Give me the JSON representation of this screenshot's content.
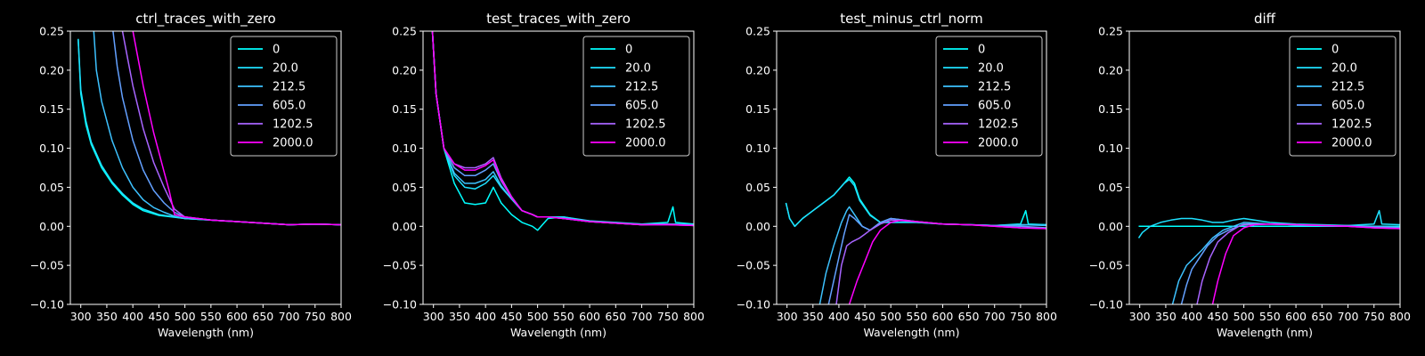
{
  "figure": {
    "background": "#000000",
    "foreground": "#ffffff"
  },
  "chart_data": [
    {
      "type": "line",
      "title": "ctrl_traces_with_zero",
      "xlabel": "Wavelength (nm)",
      "ylabel": "",
      "xlim": [
        280,
        800
      ],
      "ylim": [
        -0.1,
        0.25
      ],
      "xticks": [
        300,
        350,
        400,
        450,
        500,
        550,
        600,
        650,
        700,
        750,
        800
      ],
      "yticks": [
        -0.1,
        -0.05,
        0.0,
        0.05,
        0.1,
        0.15,
        0.2,
        0.25
      ],
      "grid": false,
      "legend_position": "top-right",
      "series": [
        {
          "name": "0",
          "color": "#00ffff",
          "x": [
            295,
            300,
            310,
            320,
            340,
            360,
            380,
            400,
            420,
            450,
            500,
            550,
            600,
            650,
            700,
            750,
            800
          ],
          "y": [
            0.24,
            0.17,
            0.13,
            0.105,
            0.075,
            0.055,
            0.04,
            0.028,
            0.02,
            0.014,
            0.01,
            0.008,
            0.006,
            0.004,
            0.002,
            0.003,
            0.002
          ]
        },
        {
          "name": "20.0",
          "color": "#1ee1ff",
          "x": [
            295,
            300,
            310,
            320,
            340,
            360,
            380,
            400,
            420,
            450,
            500,
            550,
            600,
            650,
            700,
            750,
            800
          ],
          "y": [
            0.24,
            0.175,
            0.135,
            0.108,
            0.078,
            0.057,
            0.042,
            0.03,
            0.022,
            0.015,
            0.01,
            0.008,
            0.006,
            0.004,
            0.002,
            0.003,
            0.002
          ]
        },
        {
          "name": "212.5",
          "color": "#3dc2ff",
          "x": [
            325,
            330,
            340,
            360,
            380,
            400,
            420,
            440,
            460,
            480,
            500,
            550,
            600,
            650,
            700,
            750,
            800
          ],
          "y": [
            0.25,
            0.2,
            0.16,
            0.11,
            0.075,
            0.05,
            0.034,
            0.024,
            0.018,
            0.013,
            0.01,
            0.008,
            0.006,
            0.004,
            0.002,
            0.003,
            0.002
          ]
        },
        {
          "name": "605.0",
          "color": "#63a0ff",
          "x": [
            362,
            370,
            380,
            400,
            420,
            440,
            460,
            480,
            500,
            550,
            600,
            650,
            700,
            750,
            800
          ],
          "y": [
            0.25,
            0.205,
            0.165,
            0.11,
            0.072,
            0.046,
            0.03,
            0.018,
            0.012,
            0.008,
            0.006,
            0.004,
            0.002,
            0.003,
            0.002
          ]
        },
        {
          "name": "1202.5",
          "color": "#a864ff",
          "x": [
            380,
            390,
            400,
            420,
            440,
            460,
            480,
            500,
            550,
            600,
            650,
            700,
            750,
            800
          ],
          "y": [
            0.25,
            0.215,
            0.18,
            0.125,
            0.082,
            0.05,
            0.022,
            0.012,
            0.008,
            0.006,
            0.004,
            0.002,
            0.003,
            0.002
          ]
        },
        {
          "name": "2000.0",
          "color": "#ff00ff",
          "x": [
            400,
            410,
            420,
            440,
            460,
            470,
            480,
            500,
            550,
            600,
            650,
            700,
            750,
            800
          ],
          "y": [
            0.25,
            0.215,
            0.18,
            0.12,
            0.07,
            0.045,
            0.015,
            0.012,
            0.008,
            0.006,
            0.004,
            0.002,
            0.003,
            0.002
          ]
        }
      ]
    },
    {
      "type": "line",
      "title": "test_traces_with_zero",
      "xlabel": "Wavelength (nm)",
      "ylabel": "",
      "xlim": [
        280,
        800
      ],
      "ylim": [
        -0.1,
        0.25
      ],
      "xticks": [
        300,
        350,
        400,
        450,
        500,
        550,
        600,
        650,
        700,
        750,
        800
      ],
      "yticks": [
        -0.1,
        -0.05,
        0.0,
        0.05,
        0.1,
        0.15,
        0.2,
        0.25
      ],
      "grid": false,
      "legend_position": "top-right",
      "series": [
        {
          "name": "0",
          "color": "#00ffff",
          "x": [
            298,
            305,
            320,
            340,
            360,
            380,
            400,
            415,
            430,
            450,
            470,
            490,
            500,
            520,
            550,
            600,
            650,
            700,
            750,
            760,
            765,
            800
          ],
          "y": [
            0.25,
            0.17,
            0.1,
            0.055,
            0.03,
            0.028,
            0.03,
            0.05,
            0.03,
            0.015,
            0.005,
            0.0,
            -0.005,
            0.01,
            0.012,
            0.006,
            0.004,
            0.003,
            0.005,
            0.025,
            0.005,
            0.003
          ]
        },
        {
          "name": "20.0",
          "color": "#1ee1ff",
          "x": [
            298,
            305,
            320,
            340,
            360,
            380,
            400,
            415,
            430,
            450,
            470,
            490,
            500,
            520,
            550,
            600,
            650,
            700,
            750,
            800
          ],
          "y": [
            0.25,
            0.17,
            0.1,
            0.065,
            0.05,
            0.048,
            0.055,
            0.065,
            0.05,
            0.035,
            0.02,
            0.015,
            0.012,
            0.012,
            0.012,
            0.007,
            0.005,
            0.003,
            0.003,
            0.002
          ]
        },
        {
          "name": "212.5",
          "color": "#3dc2ff",
          "x": [
            298,
            305,
            320,
            340,
            360,
            380,
            400,
            415,
            430,
            450,
            470,
            490,
            500,
            520,
            550,
            600,
            650,
            700,
            750,
            800
          ],
          "y": [
            0.25,
            0.17,
            0.1,
            0.068,
            0.055,
            0.055,
            0.06,
            0.07,
            0.052,
            0.035,
            0.02,
            0.015,
            0.012,
            0.012,
            0.01,
            0.006,
            0.004,
            0.002,
            0.003,
            0.002
          ]
        },
        {
          "name": "605.0",
          "color": "#63a0ff",
          "x": [
            298,
            305,
            320,
            340,
            360,
            380,
            400,
            415,
            430,
            450,
            470,
            490,
            500,
            520,
            550,
            600,
            650,
            700,
            750,
            800
          ],
          "y": [
            0.25,
            0.17,
            0.1,
            0.075,
            0.065,
            0.065,
            0.072,
            0.08,
            0.058,
            0.037,
            0.02,
            0.015,
            0.012,
            0.012,
            0.01,
            0.006,
            0.004,
            0.002,
            0.003,
            0.001
          ]
        },
        {
          "name": "1202.5",
          "color": "#a864ff",
          "x": [
            298,
            305,
            320,
            340,
            360,
            380,
            400,
            415,
            430,
            450,
            470,
            490,
            500,
            520,
            550,
            600,
            650,
            700,
            750,
            800
          ],
          "y": [
            0.25,
            0.17,
            0.1,
            0.08,
            0.075,
            0.075,
            0.08,
            0.088,
            0.062,
            0.038,
            0.02,
            0.015,
            0.012,
            0.012,
            0.01,
            0.006,
            0.004,
            0.002,
            0.002,
            0.001
          ]
        },
        {
          "name": "2000.0",
          "color": "#ff00ff",
          "x": [
            298,
            305,
            320,
            340,
            360,
            380,
            400,
            415,
            430,
            450,
            470,
            490,
            500,
            520,
            550,
            600,
            650,
            700,
            750,
            800
          ],
          "y": [
            0.25,
            0.17,
            0.1,
            0.08,
            0.072,
            0.072,
            0.078,
            0.085,
            0.06,
            0.037,
            0.02,
            0.015,
            0.012,
            0.012,
            0.01,
            0.006,
            0.004,
            0.002,
            0.002,
            0.001
          ]
        }
      ]
    },
    {
      "type": "line",
      "title": "test_minus_ctrl_norm",
      "xlabel": "Wavelength (nm)",
      "ylabel": "",
      "xlim": [
        280,
        800
      ],
      "ylim": [
        -0.1,
        0.25
      ],
      "xticks": [
        300,
        350,
        400,
        450,
        500,
        550,
        600,
        650,
        700,
        750,
        800
      ],
      "yticks": [
        -0.1,
        -0.05,
        0.0,
        0.05,
        0.1,
        0.15,
        0.2,
        0.25
      ],
      "grid": false,
      "legend_position": "top-right",
      "series": [
        {
          "name": "0",
          "color": "#00ffff",
          "x": [
            298,
            305,
            315,
            330,
            350,
            370,
            390,
            410,
            420,
            430,
            440,
            460,
            480,
            500,
            550,
            600,
            650,
            700,
            750,
            760,
            765,
            800
          ],
          "y": [
            0.03,
            0.01,
            0.0,
            0.01,
            0.02,
            0.03,
            0.04,
            0.055,
            0.063,
            0.055,
            0.035,
            0.015,
            0.005,
            0.005,
            0.005,
            0.003,
            0.002,
            0.001,
            0.003,
            0.02,
            0.003,
            0.002
          ]
        },
        {
          "name": "20.0",
          "color": "#1ee1ff",
          "x": [
            298,
            305,
            315,
            330,
            350,
            370,
            390,
            410,
            420,
            430,
            440,
            460,
            480,
            500,
            550,
            600,
            650,
            700,
            750,
            800
          ],
          "y": [
            0.03,
            0.01,
            0.0,
            0.01,
            0.02,
            0.03,
            0.04,
            0.055,
            0.06,
            0.052,
            0.033,
            0.014,
            0.005,
            0.005,
            0.005,
            0.003,
            0.002,
            0.001,
            0.002,
            0.002
          ]
        },
        {
          "name": "212.5",
          "color": "#3dc2ff",
          "x": [
            363,
            375,
            390,
            405,
            415,
            420,
            430,
            445,
            460,
            480,
            500,
            550,
            600,
            650,
            700,
            750,
            800
          ],
          "y": [
            -0.1,
            -0.06,
            -0.025,
            0.005,
            0.02,
            0.025,
            0.015,
            0.0,
            -0.005,
            0.005,
            0.01,
            0.006,
            0.003,
            0.002,
            0.001,
            0.002,
            0.001
          ]
        },
        {
          "name": "605.0",
          "color": "#63a0ff",
          "x": [
            380,
            390,
            400,
            410,
            420,
            430,
            445,
            460,
            480,
            500,
            550,
            600,
            650,
            700,
            750,
            800
          ],
          "y": [
            -0.1,
            -0.07,
            -0.04,
            -0.01,
            0.015,
            0.01,
            0.0,
            -0.005,
            0.005,
            0.01,
            0.006,
            0.003,
            0.002,
            0.001,
            0.0,
            -0.002
          ]
        },
        {
          "name": "1202.5",
          "color": "#a864ff",
          "x": [
            395,
            405,
            415,
            425,
            440,
            450,
            460,
            480,
            500,
            550,
            600,
            650,
            700,
            750,
            800
          ],
          "y": [
            -0.1,
            -0.05,
            -0.025,
            -0.02,
            -0.015,
            -0.01,
            -0.005,
            0.003,
            0.008,
            0.006,
            0.003,
            0.002,
            0.0,
            -0.002,
            -0.003
          ]
        },
        {
          "name": "2000.0",
          "color": "#ff00ff",
          "x": [
            420,
            435,
            450,
            465,
            480,
            500,
            520,
            550,
            600,
            650,
            700,
            750,
            800
          ],
          "y": [
            -0.1,
            -0.07,
            -0.045,
            -0.02,
            -0.005,
            0.005,
            0.008,
            0.006,
            0.003,
            0.002,
            0.0,
            -0.002,
            -0.003
          ]
        }
      ]
    },
    {
      "type": "line",
      "title": "diff",
      "xlabel": "Wavelength (nm)",
      "ylabel": "",
      "xlim": [
        280,
        800
      ],
      "ylim": [
        -0.1,
        0.25
      ],
      "xticks": [
        300,
        350,
        400,
        450,
        500,
        550,
        600,
        650,
        700,
        750,
        800
      ],
      "yticks": [
        -0.1,
        -0.05,
        0.0,
        0.05,
        0.1,
        0.15,
        0.2,
        0.25
      ],
      "grid": false,
      "legend_position": "top-right",
      "series": [
        {
          "name": "0",
          "color": "#00ffff",
          "x": [
            298,
            800
          ],
          "y": [
            0.0,
            0.0
          ]
        },
        {
          "name": "20.0",
          "color": "#1ee1ff",
          "x": [
            298,
            305,
            320,
            340,
            360,
            380,
            400,
            420,
            440,
            460,
            480,
            500,
            550,
            600,
            650,
            700,
            750,
            760,
            765,
            800
          ],
          "y": [
            -0.015,
            -0.008,
            0.0,
            0.005,
            0.008,
            0.01,
            0.01,
            0.008,
            0.005,
            0.005,
            0.008,
            0.01,
            0.005,
            0.003,
            0.002,
            0.001,
            0.003,
            0.02,
            0.003,
            0.002
          ]
        },
        {
          "name": "212.5",
          "color": "#3dc2ff",
          "x": [
            363,
            375,
            390,
            405,
            420,
            440,
            460,
            480,
            500,
            550,
            600,
            650,
            700,
            750,
            800
          ],
          "y": [
            -0.1,
            -0.07,
            -0.05,
            -0.04,
            -0.03,
            -0.015,
            -0.005,
            0.0,
            0.005,
            0.003,
            0.002,
            0.001,
            0.001,
            0.0,
            -0.001
          ]
        },
        {
          "name": "605.0",
          "color": "#63a0ff",
          "x": [
            380,
            390,
            400,
            415,
            430,
            450,
            470,
            490,
            500,
            550,
            600,
            650,
            700,
            750,
            800
          ],
          "y": [
            -0.1,
            -0.075,
            -0.055,
            -0.04,
            -0.025,
            -0.012,
            -0.005,
            0.0,
            0.003,
            0.003,
            0.002,
            0.001,
            0.0,
            -0.001,
            -0.002
          ]
        },
        {
          "name": "1202.5",
          "color": "#a864ff",
          "x": [
            410,
            420,
            435,
            450,
            470,
            490,
            500,
            550,
            600,
            650,
            700,
            750,
            800
          ],
          "y": [
            -0.1,
            -0.07,
            -0.04,
            -0.02,
            -0.008,
            0.0,
            0.002,
            0.003,
            0.002,
            0.001,
            0.0,
            -0.002,
            -0.003
          ]
        },
        {
          "name": "2000.0",
          "color": "#ff00ff",
          "x": [
            440,
            450,
            465,
            480,
            500,
            520,
            550,
            600,
            650,
            700,
            750,
            800
          ],
          "y": [
            -0.1,
            -0.07,
            -0.035,
            -0.012,
            -0.002,
            0.002,
            0.003,
            0.002,
            0.001,
            0.0,
            -0.002,
            -0.003
          ]
        }
      ]
    }
  ]
}
